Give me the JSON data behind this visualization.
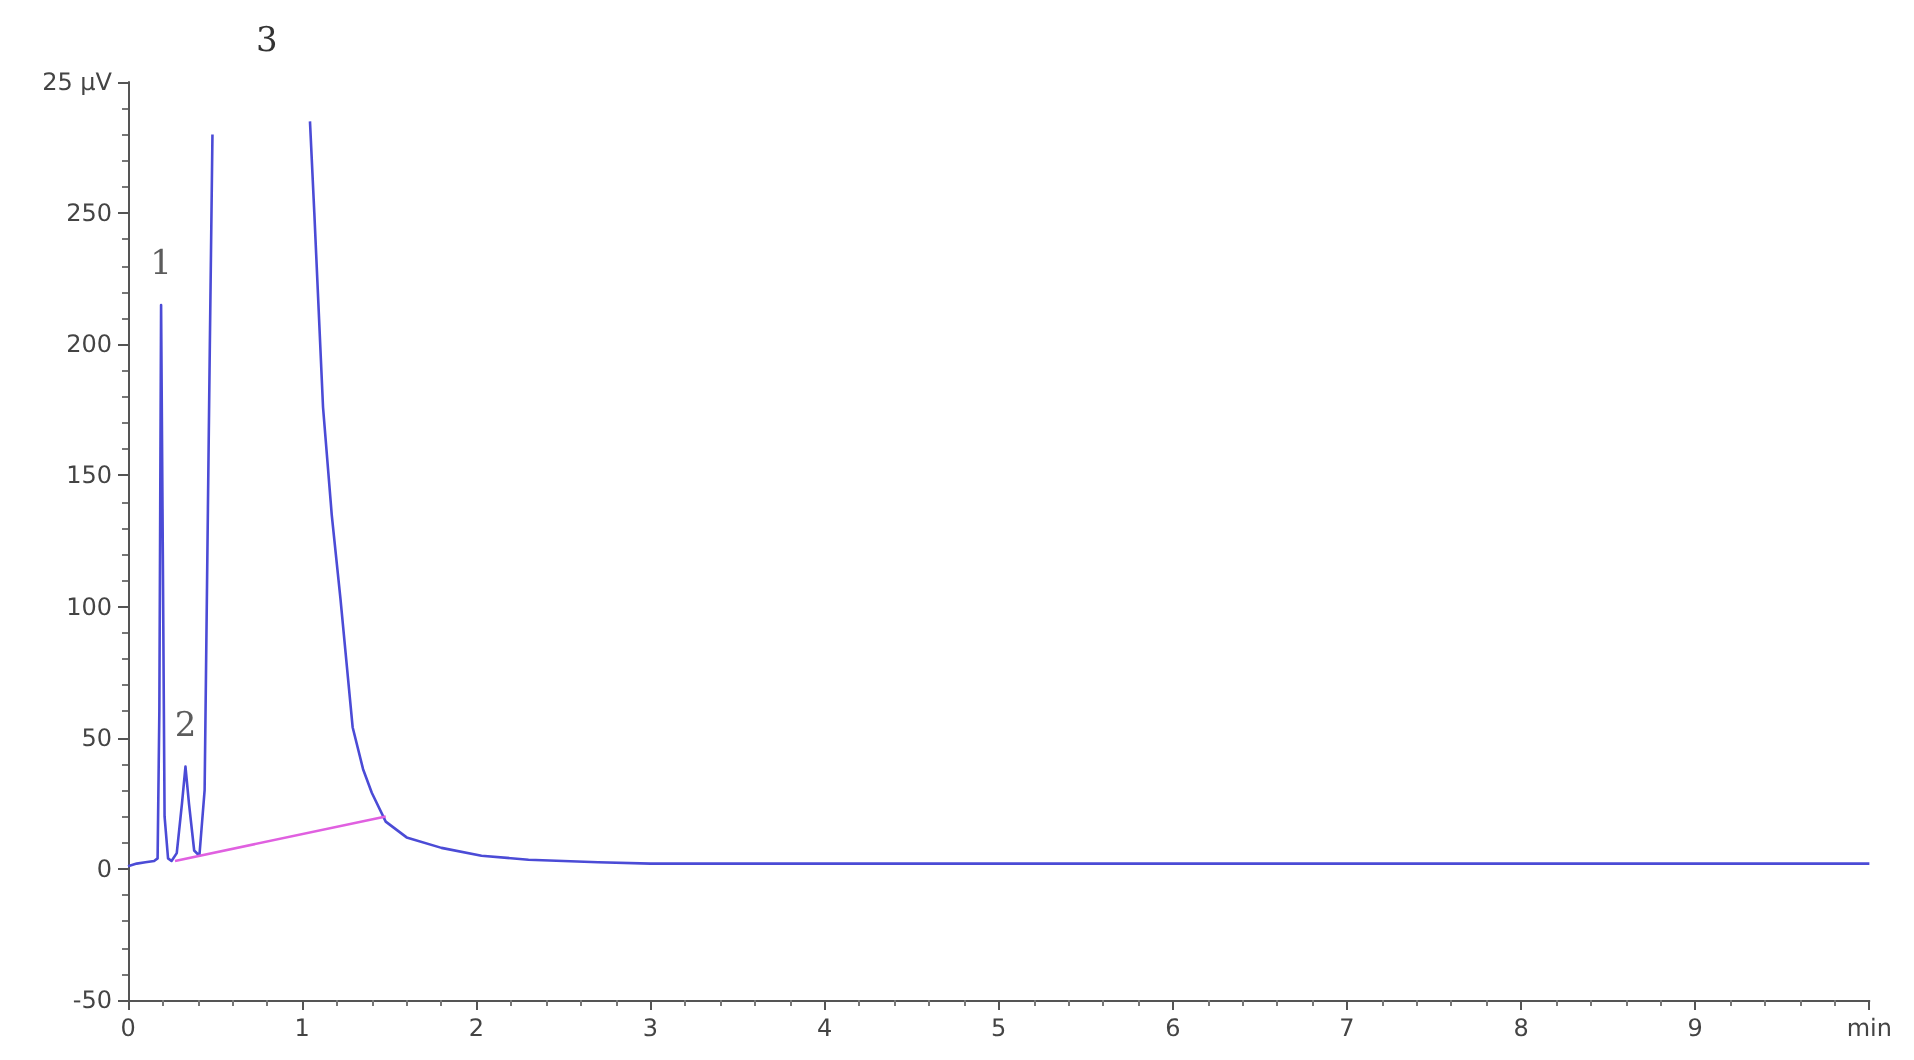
{
  "chart_data": {
    "type": "line",
    "xlim": [
      0,
      10
    ],
    "ylim": [
      -50,
      300
    ],
    "xticks": [
      0,
      1,
      2,
      3,
      4,
      5,
      6,
      7,
      8,
      9,
      {
        "value": 10,
        "label": "min"
      }
    ],
    "yticks": [
      -50,
      0,
      50,
      100,
      150,
      200,
      250
    ],
    "ylabel": "25 µV",
    "marker": "none",
    "series": [
      {
        "color": "#4b4bd6",
        "x": [
          0,
          0.05,
          0.1,
          0.15,
          0.17,
          0.18,
          0.19,
          0.2,
          0.21,
          0.23,
          0.25,
          0.28,
          0.31,
          0.33,
          0.35,
          0.38,
          0.41,
          0.44,
          0.47,
          0.485,
          0.75,
          1.045,
          1.07,
          1.12,
          1.17,
          1.22,
          1.29,
          1.35,
          1.4,
          1.48,
          1.6,
          1.8,
          2.03,
          2.3,
          2.7,
          3,
          4,
          5,
          6,
          7,
          8,
          9,
          10
        ],
        "values": [
          1,
          2,
          2.5,
          3,
          4,
          60,
          215,
          120,
          20,
          4,
          3,
          6,
          25,
          39,
          25,
          7,
          5,
          30,
          200,
          280,
          null,
          285,
          250,
          176,
          135,
          103,
          54,
          38,
          29,
          18,
          12,
          8,
          5,
          3.5,
          2.5,
          2,
          2,
          2,
          2,
          2,
          2,
          2,
          2
        ]
      },
      {
        "color": "#e060e0",
        "x": [
          0.27,
          1.48
        ],
        "values": [
          3,
          20
        ]
      }
    ],
    "annotations": [
      {
        "text": "1",
        "x": 0.19,
        "y": 215
      },
      {
        "text": "2",
        "x": 0.33,
        "y": 39
      },
      "3"
    ]
  }
}
